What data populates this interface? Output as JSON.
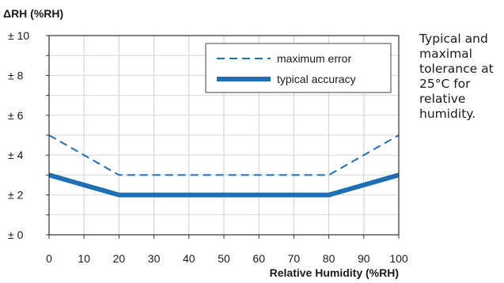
{
  "chart_data": {
    "type": "line",
    "ylabel": "ΔRH (%RH)",
    "xlabel": "Relative Humidity (%RH)",
    "x": [
      0,
      10,
      20,
      30,
      40,
      50,
      60,
      70,
      80,
      90,
      100
    ],
    "xlim": [
      0,
      100
    ],
    "ylim": [
      0,
      10
    ],
    "x_ticks": [
      "0",
      "10",
      "20",
      "30",
      "40",
      "50",
      "60",
      "70",
      "80",
      "90",
      "100"
    ],
    "y_ticks": [
      "± 0",
      "± 2",
      "± 4",
      "± 6",
      "± 8",
      "± 10"
    ],
    "grid": true,
    "legend_position": "top-right",
    "series": [
      {
        "name": "maximum error",
        "style": "dashed",
        "color": "#1f6fb5",
        "points": [
          [
            0,
            5
          ],
          [
            20,
            3
          ],
          [
            80,
            3
          ],
          [
            100,
            5
          ]
        ]
      },
      {
        "name": "typical accuracy",
        "style": "solid-thick",
        "color": "#1f6fb5",
        "points": [
          [
            0,
            3
          ],
          [
            20,
            2
          ],
          [
            80,
            2
          ],
          [
            100,
            3
          ]
        ]
      }
    ]
  },
  "caption": "Typical and maximal tolerance at 25°C for relative humidity."
}
